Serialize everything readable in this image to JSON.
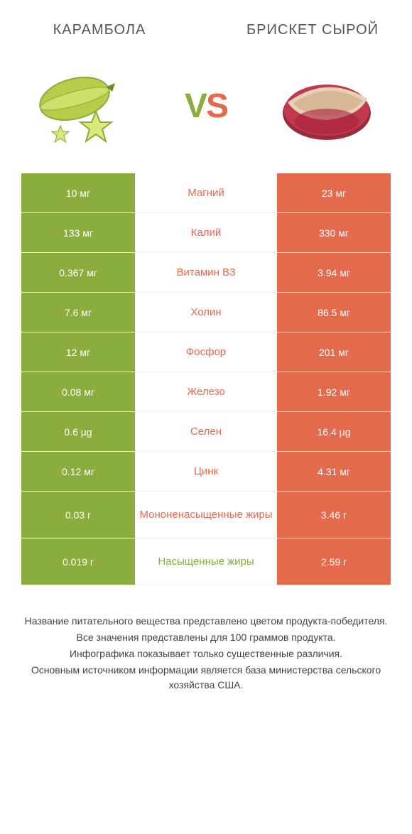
{
  "colors": {
    "left_bar": "#8aad3d",
    "right_bar": "#e46a4e",
    "mid_bg": "#ffffff",
    "text_dark": "#555555"
  },
  "header": {
    "left_title": "КАРАМБОЛА",
    "right_title": "БРИСКЕТ СЫРОЙ",
    "vs_v": "V",
    "vs_s": "S"
  },
  "rows": [
    {
      "left": "10 мг",
      "label": "Магний",
      "right": "23 мг",
      "winner": "right"
    },
    {
      "left": "133 мг",
      "label": "Калий",
      "right": "330 мг",
      "winner": "right"
    },
    {
      "left": "0.367 мг",
      "label": "Витамин B3",
      "right": "3.94 мг",
      "winner": "right"
    },
    {
      "left": "7.6 мг",
      "label": "Холин",
      "right": "86.5 мг",
      "winner": "right"
    },
    {
      "left": "12 мг",
      "label": "Фосфор",
      "right": "201 мг",
      "winner": "right"
    },
    {
      "left": "0.08 мг",
      "label": "Железо",
      "right": "1.92 мг",
      "winner": "right"
    },
    {
      "left": "0.6 µg",
      "label": "Селен",
      "right": "16.4 µg",
      "winner": "right"
    },
    {
      "left": "0.12 мг",
      "label": "Цинк",
      "right": "4.31 мг",
      "winner": "right"
    },
    {
      "left": "0.03 г",
      "label": "Мононенасыщенные жиры",
      "right": "3.46 г",
      "winner": "right",
      "tall": true
    },
    {
      "left": "0.019 г",
      "label": "Насыщенные жиры",
      "right": "2.59 г",
      "winner": "left",
      "tall": true
    }
  ],
  "footer": {
    "lines": [
      "Название питательного вещества представлено цветом продукта-победителя.",
      "Все значения представлены для 100 граммов продукта.",
      "Инфографика показывает только существенные различия.",
      "Основным источником информации является база министерства сельского хозяйства США."
    ]
  }
}
